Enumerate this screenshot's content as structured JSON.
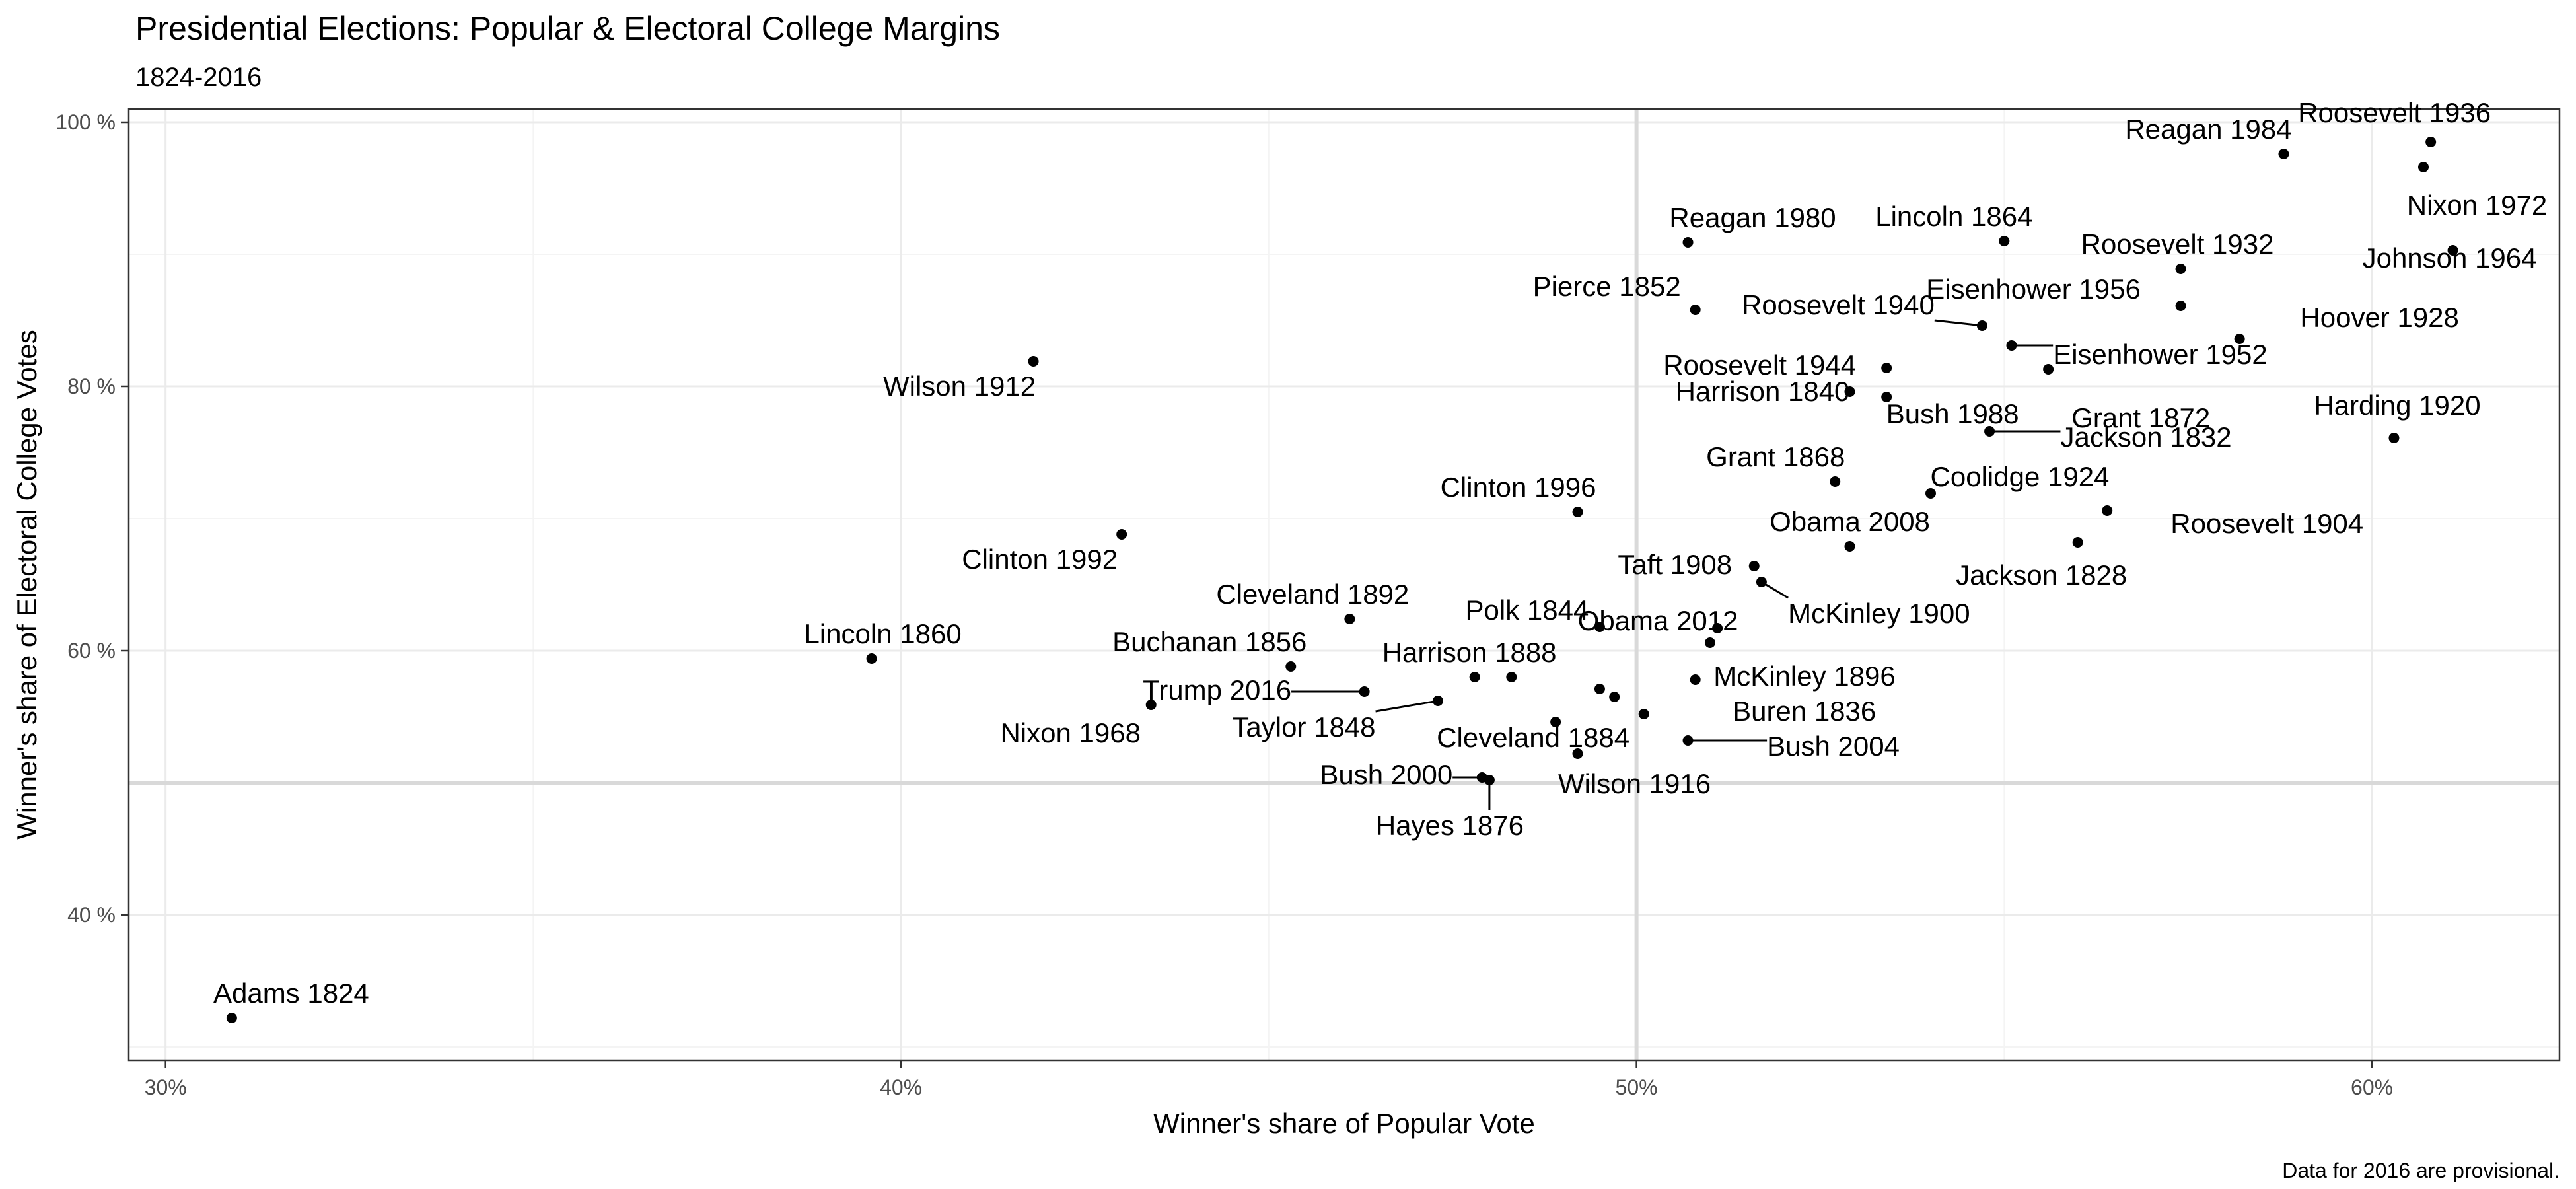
{
  "chart_data": {
    "type": "scatter",
    "title": "Presidential Elections: Popular & Electoral College Margins",
    "subtitle": "1824-2016",
    "xlabel": "Winner's share of Popular Vote",
    "ylabel": "Winner's share of Electoral College Votes",
    "caption": "Data for 2016 are provisional.",
    "xlim": [
      0.295,
      0.6255
    ],
    "ylim": [
      0.29,
      1.01
    ],
    "x_ticks": [
      0.3,
      0.4,
      0.5,
      0.6
    ],
    "x_tick_labels": [
      "30%",
      "40%",
      "50%",
      "60%"
    ],
    "y_ticks": [
      0.4,
      0.6,
      0.8,
      1.0
    ],
    "y_tick_labels": [
      "40 %",
      "60 %",
      "80 %",
      "100 %"
    ],
    "reference_lines": {
      "x": 0.5,
      "y": 0.5
    },
    "grid": true,
    "points": [
      {
        "label": "Adams 1824",
        "x": 0.309,
        "y": 0.322
      },
      {
        "label": "Jackson 1828",
        "x": 0.56,
        "y": 0.682
      },
      {
        "label": "Jackson 1832",
        "x": 0.548,
        "y": 0.766
      },
      {
        "label": "Buren 1836",
        "x": 0.508,
        "y": 0.578
      },
      {
        "label": "Harrison 1840",
        "x": 0.529,
        "y": 0.796
      },
      {
        "label": "Polk 1844",
        "x": 0.495,
        "y": 0.618
      },
      {
        "label": "Taylor 1848",
        "x": 0.473,
        "y": 0.562
      },
      {
        "label": "Pierce 1852",
        "x": 0.508,
        "y": 0.858
      },
      {
        "label": "Buchanan 1856",
        "x": 0.453,
        "y": 0.588
      },
      {
        "label": "Lincoln 1860",
        "x": 0.396,
        "y": 0.594
      },
      {
        "label": "Lincoln 1864",
        "x": 0.55,
        "y": 0.91
      },
      {
        "label": "Grant 1868",
        "x": 0.527,
        "y": 0.728
      },
      {
        "label": "Grant 1872",
        "x": 0.556,
        "y": 0.813
      },
      {
        "label": "Hayes 1876",
        "x": 0.48,
        "y": 0.502
      },
      {
        "label": "Cleveland 1884",
        "x": 0.489,
        "y": 0.546
      },
      {
        "label": "Harrison 1888",
        "x": 0.478,
        "y": 0.58
      },
      {
        "label": "Cleveland 1892",
        "x": 0.461,
        "y": 0.624
      },
      {
        "label": "McKinley 1896",
        "x": 0.51,
        "y": 0.606
      },
      {
        "label": "McKinley 1900",
        "x": 0.517,
        "y": 0.652
      },
      {
        "label": "Roosevelt 1904",
        "x": 0.564,
        "y": 0.706
      },
      {
        "label": "Taft 1908",
        "x": 0.516,
        "y": 0.664
      },
      {
        "label": "Wilson 1912",
        "x": 0.418,
        "y": 0.819
      },
      {
        "label": "Wilson 1916",
        "x": 0.492,
        "y": 0.522
      },
      {
        "label": "Harding 1920",
        "x": 0.603,
        "y": 0.761
      },
      {
        "label": "Coolidge 1924",
        "x": 0.54,
        "y": 0.719
      },
      {
        "label": "Hoover 1928",
        "x": 0.582,
        "y": 0.836
      },
      {
        "label": "Roosevelt 1932",
        "x": 0.574,
        "y": 0.889
      },
      {
        "label": "Roosevelt 1936",
        "x": 0.608,
        "y": 0.985
      },
      {
        "label": "Roosevelt 1940",
        "x": 0.547,
        "y": 0.846
      },
      {
        "label": "Roosevelt 1944",
        "x": 0.534,
        "y": 0.814
      },
      {
        "label": "Eisenhower 1952",
        "x": 0.551,
        "y": 0.831
      },
      {
        "label": "Eisenhower 1956",
        "x": 0.574,
        "y": 0.861
      },
      {
        "label": "Nixon 1968",
        "x": 0.434,
        "y": 0.559
      },
      {
        "label": "Johnson 1964",
        "x": 0.611,
        "y": 0.903
      },
      {
        "label": "Nixon 1972",
        "x": 0.607,
        "y": 0.966
      },
      {
        "label": "Reagan 1980",
        "x": 0.507,
        "y": 0.909
      },
      {
        "label": "Reagan 1984",
        "x": 0.588,
        "y": 0.976
      },
      {
        "label": "Bush 1988",
        "x": 0.534,
        "y": 0.792
      },
      {
        "label": "Clinton 1992",
        "x": 0.43,
        "y": 0.688
      },
      {
        "label": "Clinton 1996",
        "x": 0.492,
        "y": 0.705
      },
      {
        "label": "Bush 2000",
        "x": 0.479,
        "y": 0.504
      },
      {
        "label": "Bush 2004",
        "x": 0.507,
        "y": 0.532
      },
      {
        "label": "Obama 2008",
        "x": 0.529,
        "y": 0.679
      },
      {
        "label": "Obama 2012",
        "x": 0.511,
        "y": 0.617
      },
      {
        "label": "Trump 2016",
        "x": 0.463,
        "y": 0.569
      },
      {
        "label": "",
        "x": 0.483,
        "y": 0.58
      },
      {
        "label": "",
        "x": 0.495,
        "y": 0.571
      },
      {
        "label": "",
        "x": 0.497,
        "y": 0.565
      },
      {
        "label": "",
        "x": 0.501,
        "y": 0.552
      }
    ]
  }
}
